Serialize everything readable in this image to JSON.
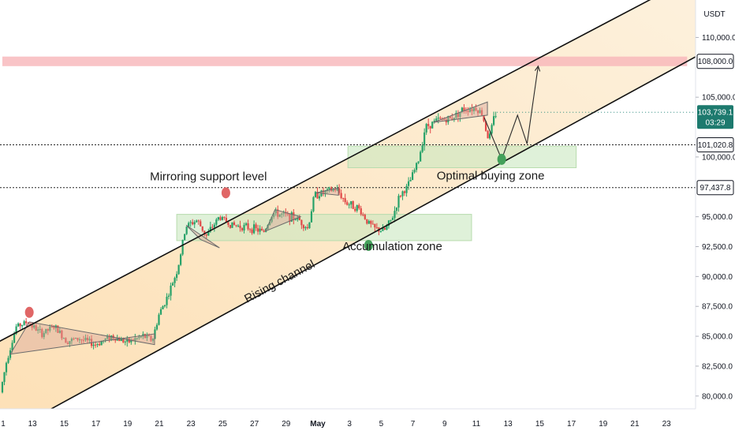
{
  "currency": "USDT",
  "chart_data": {
    "type": "candlestick",
    "y_axis": {
      "ticks": [
        110000,
        107500,
        105000,
        102500,
        100000,
        97500,
        95000,
        92500,
        90000,
        87500,
        85000,
        82500,
        80000
      ],
      "tick_labels": [
        "110,000.0",
        "",
        "105,000.0",
        "",
        "100,000.0",
        "",
        "95,000.0",
        "92,500.0",
        "90,000.0",
        "87,500.0",
        "85,000.0",
        "82,500.0",
        "80,000.0"
      ]
    },
    "x_axis": {
      "day_positions": [
        0,
        1,
        2,
        3,
        4,
        5,
        6,
        7,
        8,
        9,
        10,
        11,
        12,
        13,
        14,
        15,
        16,
        17,
        18,
        19,
        20,
        21
      ],
      "tick_labels": [
        "1",
        "13",
        "15",
        "17",
        "19",
        "21",
        "23",
        "25",
        "27",
        "29",
        "May",
        "3",
        "5",
        "7",
        "9",
        "11",
        "13",
        "15",
        "17",
        "19",
        "21",
        "23"
      ]
    },
    "price_levels": [
      {
        "label": "108,000.0",
        "value": 108000,
        "style": "highlight"
      },
      {
        "label": "103,739.1",
        "value": 103739.1,
        "timer": "03:29",
        "style": "current"
      },
      {
        "label": "101,020.8",
        "value": 101020.8,
        "style": "dotted"
      },
      {
        "label": "97,437.8",
        "value": 97437.8,
        "style": "dotted"
      }
    ],
    "zones": [
      {
        "name": "resistance",
        "x": [
          0,
          21.6
        ],
        "y": [
          107600,
          108400
        ],
        "color": "#f7b5b9"
      },
      {
        "name": "accumulation",
        "x": [
          5.5,
          14.8
        ],
        "y": [
          93000,
          95200
        ],
        "color": "#c9e7c0"
      },
      {
        "name": "optimal_buying",
        "x": [
          10.9,
          18.1
        ],
        "y": [
          99100,
          100900
        ],
        "color": "#c9e7c0"
      }
    ],
    "channel": {
      "upper": [
        [
          0,
          84700
        ],
        [
          19.6,
          112000
        ]
      ],
      "lower": [
        [
          1.8,
          79300
        ],
        [
          21.6,
          108000
        ]
      ],
      "fill": "#fde3bd"
    },
    "annotations": [
      {
        "text": "Mirroring support level",
        "x": 6.5,
        "y": 98050,
        "rotate": 0
      },
      {
        "text": "Accumulation zone",
        "x": 12.3,
        "y": 92200,
        "rotate": 0
      },
      {
        "text": "Optimal buying zone",
        "x": 15.4,
        "y": 98100,
        "rotate": 0
      },
      {
        "text": "Rising channel",
        "x": 8.8,
        "y": 89300,
        "rotate": -28
      }
    ],
    "markers": [
      {
        "x": 0.85,
        "y": 87000,
        "color": "#e06666"
      },
      {
        "x": 7.05,
        "y": 97000,
        "color": "#e06666"
      },
      {
        "x": 11.55,
        "y": 92600,
        "color": "#43a05a"
      },
      {
        "x": 15.75,
        "y": 99800,
        "color": "#43a05a"
      }
    ],
    "triangles": [
      [
        [
          0.25,
          83500
        ],
        [
          0.85,
          86200
        ],
        [
          4.8,
          84300
        ],
        [
          4.8,
          85200
        ]
      ],
      [
        [
          5.8,
          94300
        ],
        [
          6.85,
          92400
        ],
        [
          6.25,
          93100
        ]
      ],
      [
        [
          8.3,
          93800
        ],
        [
          8.6,
          95600
        ],
        [
          9.4,
          95000
        ]
      ],
      [
        [
          9.9,
          97000
        ],
        [
          10.6,
          97400
        ],
        [
          10.6,
          96800
        ]
      ],
      [
        [
          13.6,
          102900
        ],
        [
          15.3,
          104600
        ],
        [
          15.3,
          103500
        ]
      ]
    ],
    "projection": [
      [
        15.2,
        103300
      ],
      [
        15.75,
        99800
      ],
      [
        16.25,
        103500
      ],
      [
        16.55,
        101100
      ],
      [
        16.9,
        107600
      ]
    ],
    "series_path": [
      [
        0,
        80300
      ],
      [
        0.2,
        83000
      ],
      [
        0.5,
        85800
      ],
      [
        0.85,
        86200
      ],
      [
        1.3,
        85200
      ],
      [
        1.7,
        85800
      ],
      [
        2.1,
        84600
      ],
      [
        2.5,
        84800
      ],
      [
        3.0,
        84300
      ],
      [
        3.5,
        85000
      ],
      [
        4.0,
        84500
      ],
      [
        4.5,
        85000
      ],
      [
        4.8,
        84700
      ],
      [
        5.0,
        86800
      ],
      [
        5.3,
        88500
      ],
      [
        5.6,
        90700
      ],
      [
        5.85,
        94200
      ],
      [
        6.2,
        94700
      ],
      [
        6.5,
        93400
      ],
      [
        6.9,
        95000
      ],
      [
        7.3,
        94300
      ],
      [
        7.6,
        94200
      ],
      [
        8.0,
        94000
      ],
      [
        8.3,
        93700
      ],
      [
        8.6,
        95300
      ],
      [
        9.0,
        95100
      ],
      [
        9.4,
        94800
      ],
      [
        9.7,
        94000
      ],
      [
        9.9,
        96800
      ],
      [
        10.3,
        97100
      ],
      [
        10.6,
        97300
      ],
      [
        10.9,
        96200
      ],
      [
        11.3,
        95700
      ],
      [
        11.6,
        94500
      ],
      [
        11.8,
        94000
      ],
      [
        12.1,
        93800
      ],
      [
        12.35,
        94800
      ],
      [
        12.6,
        96800
      ],
      [
        12.85,
        97500
      ],
      [
        13.2,
        99800
      ],
      [
        13.4,
        102500
      ],
      [
        13.8,
        103100
      ],
      [
        14.2,
        103200
      ],
      [
        14.6,
        104000
      ],
      [
        15.0,
        104100
      ],
      [
        15.2,
        103600
      ],
      [
        15.4,
        101400
      ],
      [
        15.6,
        103600
      ]
    ]
  }
}
